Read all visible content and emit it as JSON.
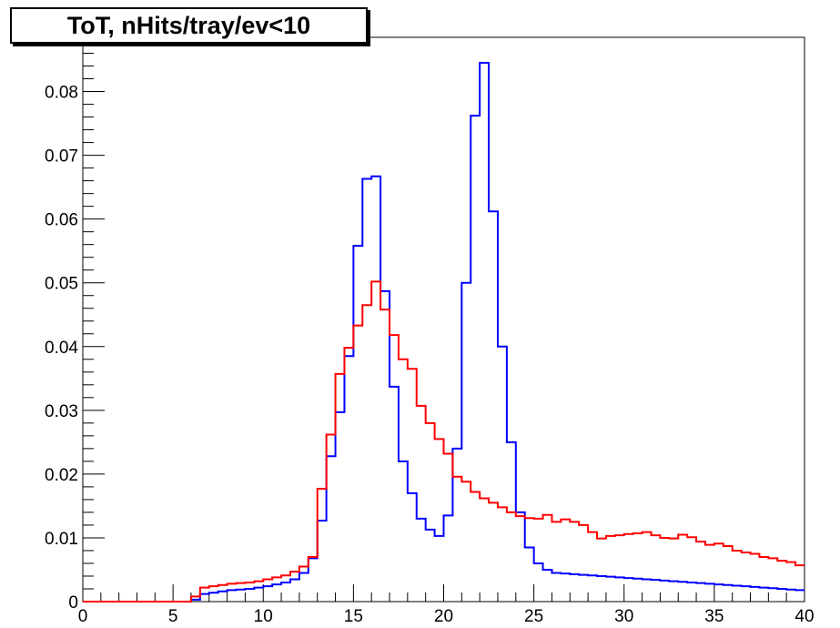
{
  "chart_data": {
    "type": "line",
    "title": "ToT, nHits/tray/ev<10",
    "xlabel": "",
    "ylabel": "",
    "xlim": [
      0,
      40
    ],
    "ylim": [
      0,
      0.0885
    ],
    "grid": false,
    "x_ticks": [
      "0",
      "5",
      "10",
      "15",
      "20",
      "25",
      "30",
      "35",
      "40"
    ],
    "y_ticks": [
      "0",
      "0.01",
      "0.02",
      "0.03",
      "0.04",
      "0.05",
      "0.06",
      "0.07",
      "0.08"
    ],
    "bin_width": 0.5,
    "series": [
      {
        "color": "#0000ff",
        "values": [
          0,
          0,
          0,
          0,
          0,
          0,
          0,
          0,
          0,
          0,
          0,
          0,
          0.0003,
          0.0012,
          0.0014,
          0.0016,
          0.0018,
          0.0019,
          0.002,
          0.0022,
          0.0024,
          0.0027,
          0.003,
          0.0035,
          0.0045,
          0.0068,
          0.0127,
          0.0228,
          0.0297,
          0.0385,
          0.0558,
          0.0663,
          0.0667,
          0.0487,
          0.0337,
          0.022,
          0.017,
          0.013,
          0.0113,
          0.0103,
          0.0135,
          0.024,
          0.05,
          0.0762,
          0.0845,
          0.0612,
          0.04,
          0.025,
          0.014,
          0.0085,
          0.006,
          0.005,
          0.0045,
          0.0044,
          0.0043,
          0.0042,
          0.0041,
          0.004,
          0.0039,
          0.0038,
          0.0037,
          0.0036,
          0.0035,
          0.0034,
          0.0033,
          0.0032,
          0.0031,
          0.003,
          0.0029,
          0.0028,
          0.0027,
          0.0026,
          0.0025,
          0.0024,
          0.0023,
          0.0022,
          0.0021,
          0.002,
          0.0019,
          0.0018
        ]
      },
      {
        "color": "#ff0000",
        "values": [
          0,
          0,
          0,
          0,
          0,
          0,
          0,
          0,
          0,
          0,
          0,
          0,
          0.0008,
          0.0022,
          0.0024,
          0.0026,
          0.0028,
          0.0029,
          0.003,
          0.0032,
          0.0035,
          0.0038,
          0.0041,
          0.0047,
          0.0055,
          0.007,
          0.0177,
          0.0262,
          0.0357,
          0.0398,
          0.0433,
          0.0465,
          0.0502,
          0.0458,
          0.0418,
          0.038,
          0.0365,
          0.0307,
          0.028,
          0.0255,
          0.0232,
          0.0196,
          0.0188,
          0.0172,
          0.0162,
          0.0155,
          0.0148,
          0.014,
          0.0134,
          0.0131,
          0.013,
          0.0136,
          0.0125,
          0.0129,
          0.0125,
          0.012,
          0.0109,
          0.0099,
          0.0103,
          0.0104,
          0.0106,
          0.0107,
          0.0109,
          0.0104,
          0.01,
          0.0099,
          0.0105,
          0.0101,
          0.0094,
          0.0089,
          0.0091,
          0.0087,
          0.008,
          0.0077,
          0.0075,
          0.007,
          0.0068,
          0.0064,
          0.0062,
          0.0057
        ]
      }
    ]
  }
}
